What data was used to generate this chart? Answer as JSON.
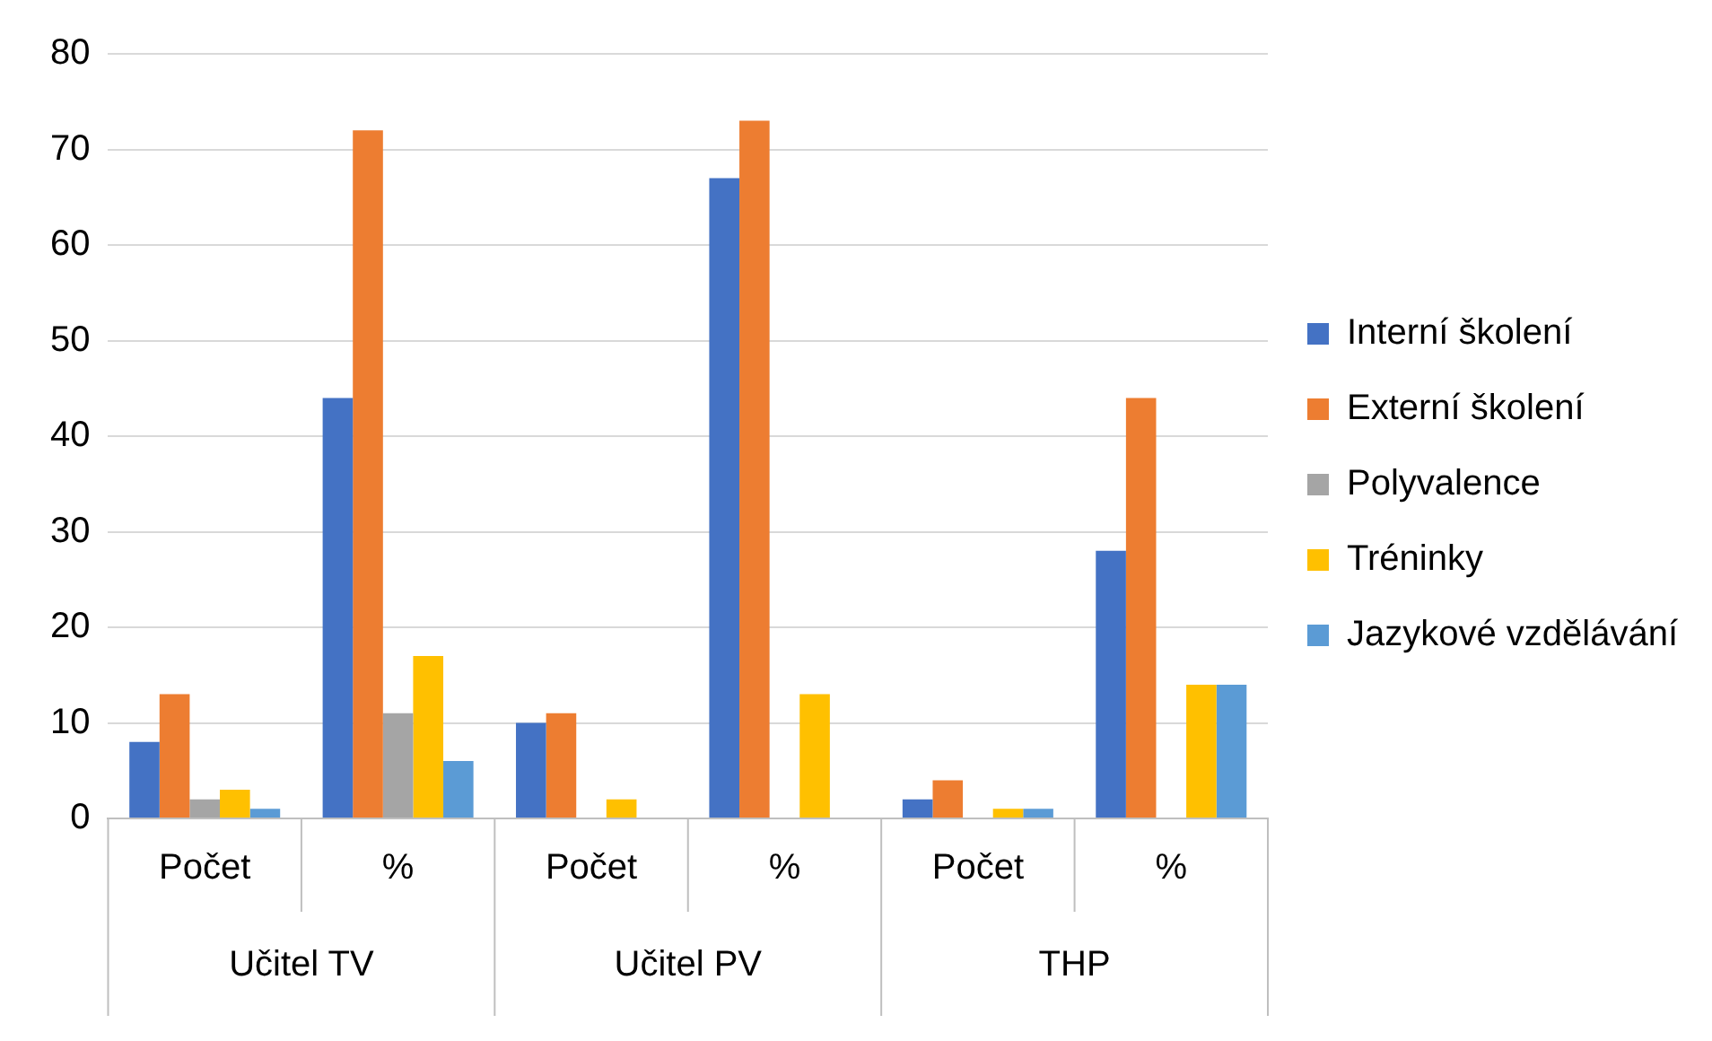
{
  "chart_data": {
    "type": "bar",
    "categories": [
      "Počet",
      "%",
      "Počet",
      "%",
      "Počet",
      "%"
    ],
    "annotations": [
      "Učitel TV",
      "Učitel PV",
      "THP"
    ],
    "series": [
      {
        "name": "Interní školení",
        "color": "#4472c4",
        "values": [
          8,
          44,
          10,
          67,
          2,
          28
        ]
      },
      {
        "name": "Externí školení",
        "color": "#ed7d31",
        "values": [
          13,
          72,
          11,
          73,
          4,
          44
        ]
      },
      {
        "name": "Polyvalence",
        "color": "#a5a5a5",
        "values": [
          2,
          11,
          0,
          0,
          0,
          0
        ]
      },
      {
        "name": "Tréninky",
        "color": "#ffc000",
        "values": [
          3,
          17,
          2,
          13,
          1,
          14
        ]
      },
      {
        "name": "Jazykové vzdělávání",
        "color": "#5b9bd5",
        "values": [
          1,
          6,
          0,
          0,
          1,
          14
        ]
      }
    ],
    "ylim": [
      0,
      80
    ],
    "yticks": [
      0,
      10,
      20,
      30,
      40,
      50,
      60,
      70,
      80
    ],
    "grid": "y",
    "legend": "right"
  }
}
